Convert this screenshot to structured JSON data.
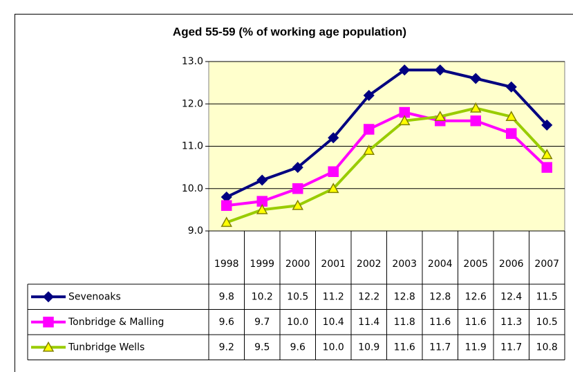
{
  "chart_data": {
    "type": "line",
    "title": "Aged 55-59 (% of working age population)",
    "categories": [
      "1998",
      "1999",
      "2000",
      "2001",
      "2002",
      "2003",
      "2004",
      "2005",
      "2006",
      "2007"
    ],
    "series": [
      {
        "name": "Sevenoaks",
        "color": "#000080",
        "marker": "diamond",
        "marker_color": "#000080",
        "values": [
          9.8,
          10.2,
          10.5,
          11.2,
          12.2,
          12.8,
          12.8,
          12.6,
          12.4,
          11.5
        ]
      },
      {
        "name": "Tonbridge & Malling",
        "color": "#ff00ff",
        "marker": "square",
        "marker_color": "#ff00ff",
        "values": [
          9.6,
          9.7,
          10.0,
          10.4,
          11.4,
          11.8,
          11.6,
          11.6,
          11.3,
          10.5
        ],
        "value_labels": [
          "9.6",
          "9.7",
          "10.0",
          "10.4",
          "11.4",
          "11.8",
          "11.6",
          "11.6",
          "11.3",
          "10.5"
        ]
      },
      {
        "name": "Tunbridge Wells",
        "color": "#99cc00",
        "marker": "triangle",
        "marker_color": "#ffff00",
        "values": [
          9.2,
          9.5,
          9.6,
          10.0,
          10.9,
          11.6,
          11.7,
          11.9,
          11.7,
          10.8
        ],
        "value_labels": [
          "9.2",
          "9.5",
          "9.6",
          "10.0",
          "10.9",
          "11.6",
          "11.7",
          "11.9",
          "11.7",
          "10.8"
        ]
      }
    ],
    "ylim": [
      9,
      13
    ],
    "yticks": [
      {
        "value": 9,
        "label": "9.0"
      },
      {
        "value": 10,
        "label": "10.0"
      },
      {
        "value": 11,
        "label": "11.0"
      },
      {
        "value": 12,
        "label": "12.0"
      },
      {
        "value": 13,
        "label": "13.0"
      }
    ],
    "grid": true,
    "plot_background": "#ffffcc"
  }
}
